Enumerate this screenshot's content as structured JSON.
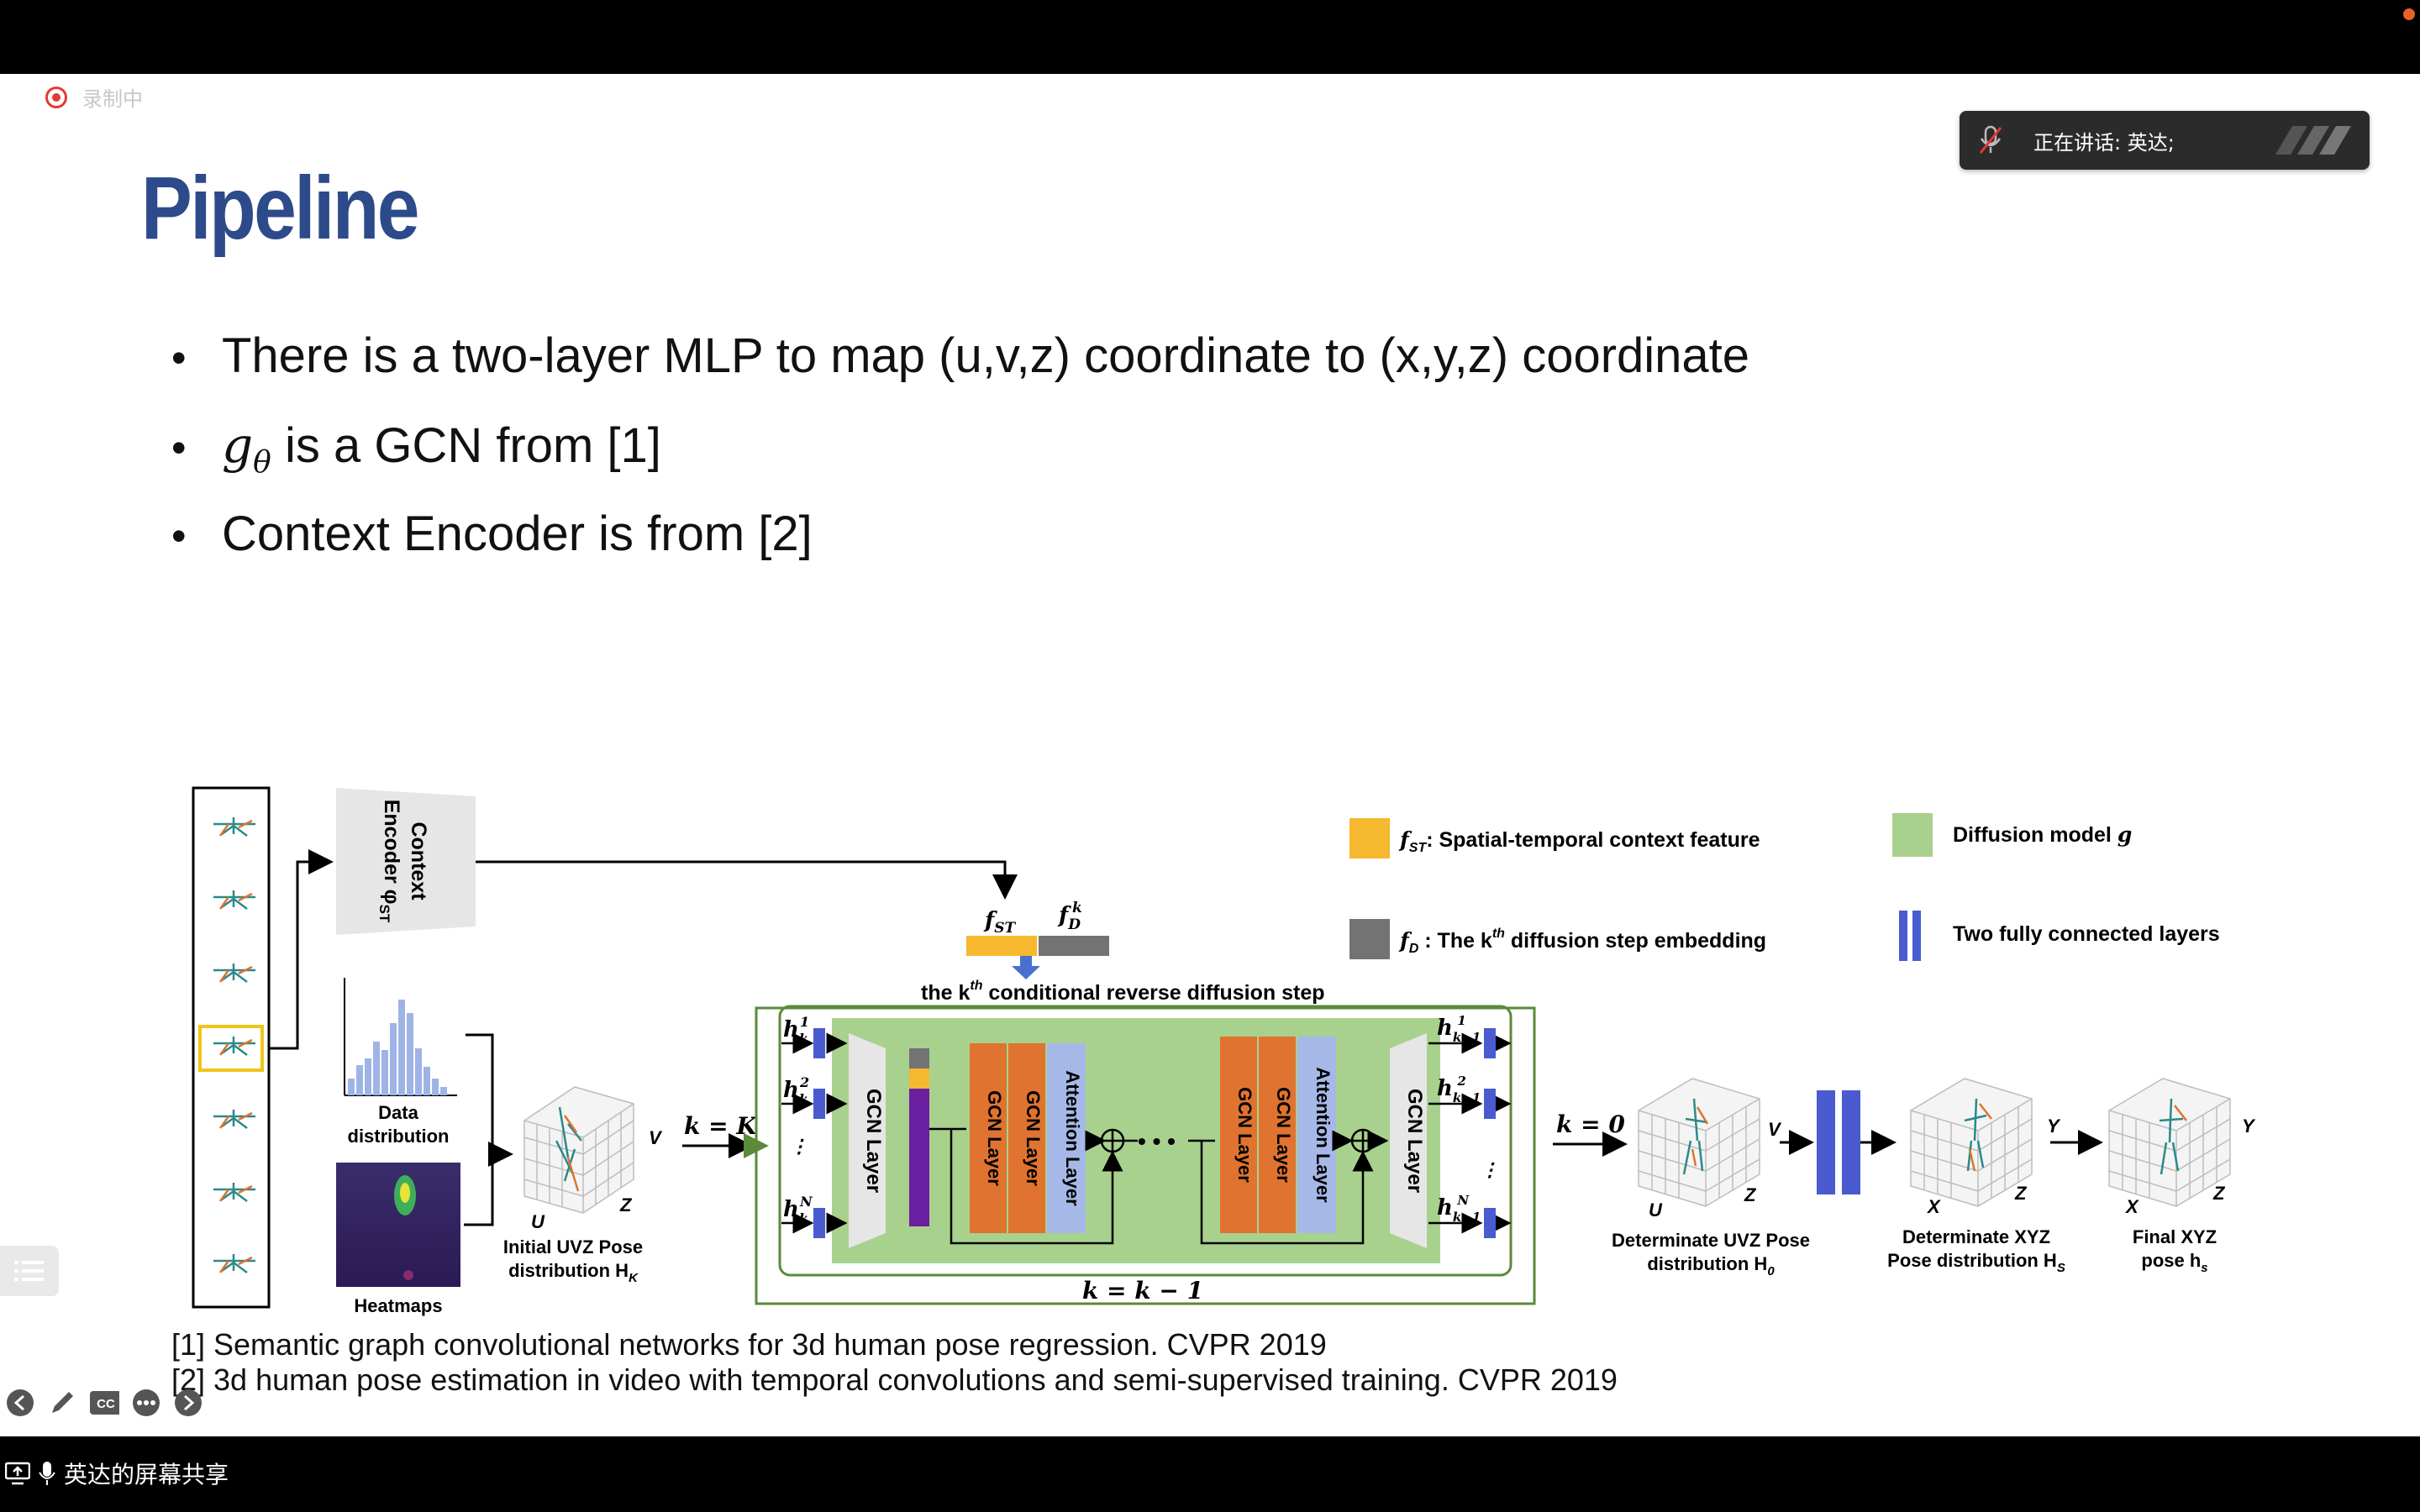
{
  "recording": {
    "label": "录制中"
  },
  "speaker": {
    "text": "正在讲话: 英达;"
  },
  "slide": {
    "title": "Pipeline",
    "bullets": [
      {
        "math": "",
        "text": "There is a two-layer MLP to map (u,v,z) coordinate to (x,y,z) coordinate"
      },
      {
        "math": "g",
        "sub": "θ",
        "text": " is a GCN from [1]"
      },
      {
        "math": "",
        "text": "Context Encoder is from [2]"
      }
    ],
    "references": [
      "[1] Semantic graph convolutional networks for 3d human pose regression. CVPR 2019",
      "[2] 3d human pose estimation in video with temporal convolutions and semi-supervised training. CVPR 2019"
    ]
  },
  "diagram": {
    "context_encoder": [
      "Context",
      "Encoder φ",
      "ST"
    ],
    "legend": {
      "fst": ": Spatial-temporal context feature",
      "fd": " :  The k",
      "fd_tail": " diffusion step embedding",
      "diffusion": "Diffusion model ",
      "diffusion_var": "g",
      "fc": "Two fully connected layers"
    },
    "step_label": "the k",
    "step_label_tail": " conditional reverse diffusion step",
    "data_distribution": [
      "Data",
      "distribution"
    ],
    "heatmaps": "Heatmaps",
    "initial_pose": [
      "Initial UVZ Pose",
      "distribution H"
    ],
    "k_eq_K": "k = K",
    "k_eq_0": "k = 0",
    "k_loop": "k = k − 1",
    "gcn_layer": "GCN Layer",
    "attention_layer": "Attention Layer",
    "dots": "• • •",
    "determinate_uvz": [
      "Determinate UVZ Pose",
      "distribution H"
    ],
    "determinate_xyz": [
      "Determinate XYZ",
      "Pose distribution H"
    ],
    "final_xyz": [
      "Final XYZ",
      "pose h"
    ],
    "axes": {
      "u": "U",
      "v": "V",
      "z": "Z",
      "x": "X",
      "y": "Y"
    },
    "colors": {
      "green": "#a9d18e",
      "orange": "#e0732f",
      "lavender": "#a6b8e8",
      "blue": "#4a5bd0",
      "yellow": "#f5b82e",
      "gray": "#737373",
      "purple": "#6a1ea0"
    }
  },
  "bottom": {
    "share_label": "英达的屏幕共享"
  }
}
